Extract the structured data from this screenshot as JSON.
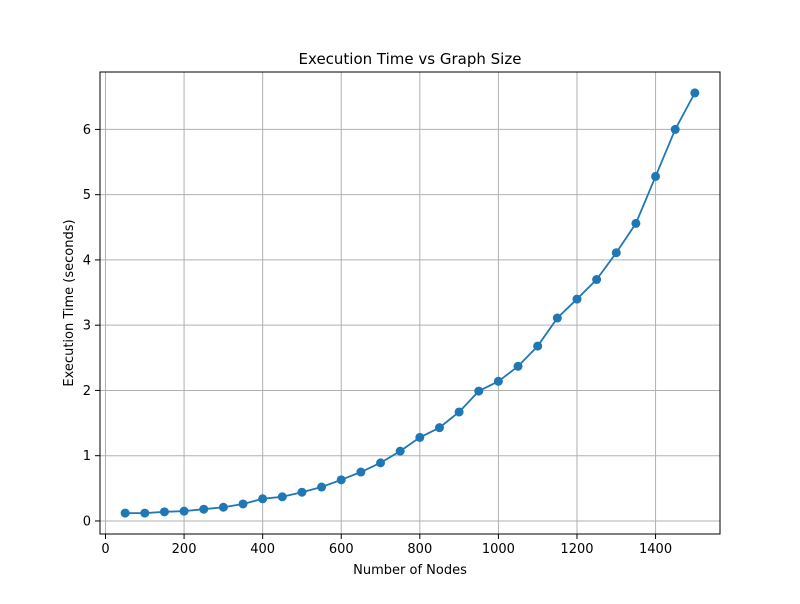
{
  "chart_data": {
    "type": "line",
    "title": "Execution Time vs Graph Size",
    "xlabel": "Number of Nodes",
    "ylabel": "Execution Time (seconds)",
    "xlim": [
      -14,
      1564
    ],
    "ylim": [
      -0.2,
      6.88
    ],
    "xticks": [
      0,
      200,
      400,
      600,
      800,
      1000,
      1200,
      1400
    ],
    "yticks": [
      0,
      1,
      2,
      3,
      4,
      5,
      6
    ],
    "grid": true,
    "legend": "none",
    "colors": {
      "series": "#1f77b4",
      "grid": "#b0b0b0",
      "axis": "#000000"
    },
    "marker": "circle",
    "x": [
      50,
      100,
      150,
      200,
      250,
      300,
      350,
      400,
      450,
      500,
      550,
      600,
      650,
      700,
      750,
      800,
      850,
      900,
      950,
      1000,
      1050,
      1100,
      1150,
      1200,
      1250,
      1300,
      1350,
      1400,
      1450,
      1500
    ],
    "y": [
      0.12,
      0.12,
      0.14,
      0.15,
      0.18,
      0.21,
      0.26,
      0.34,
      0.37,
      0.44,
      0.52,
      0.63,
      0.75,
      0.89,
      1.07,
      1.28,
      1.43,
      1.67,
      1.99,
      2.14,
      2.37,
      2.68,
      3.11,
      3.4,
      3.7,
      4.11,
      4.56,
      5.28,
      6.0,
      6.56
    ]
  }
}
